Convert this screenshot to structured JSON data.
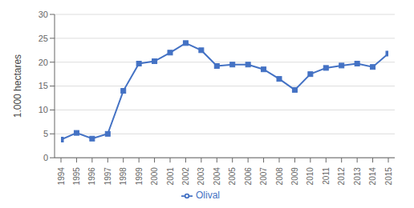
{
  "chart_data": {
    "type": "line",
    "x": [
      1994,
      1995,
      1996,
      1997,
      1998,
      1999,
      2000,
      2001,
      2002,
      2003,
      2004,
      2005,
      2006,
      2007,
      2008,
      2009,
      2010,
      2011,
      2012,
      2013,
      2014,
      2015
    ],
    "series": [
      {
        "name": "Olival",
        "color": "#4472C4",
        "marker": "square",
        "values": [
          3.8,
          5.2,
          4.0,
          5.0,
          14.0,
          19.7,
          20.2,
          22.0,
          24.0,
          22.5,
          19.2,
          19.5,
          19.5,
          18.5,
          16.5,
          14.2,
          17.5,
          18.8,
          19.3,
          19.7,
          19.0,
          21.8
        ]
      }
    ],
    "ylabel": "1.000 hectares",
    "xlim": [
      1994,
      2015
    ],
    "xticks": [
      1994,
      1995,
      1996,
      1997,
      1998,
      1999,
      2000,
      2001,
      2002,
      2003,
      2004,
      2005,
      2006,
      2007,
      2008,
      2009,
      2010,
      2011,
      2012,
      2013,
      2014,
      2015
    ],
    "ylim": [
      0,
      30
    ],
    "yticks": [
      0,
      5,
      10,
      15,
      20,
      25,
      30
    ],
    "grid": "y",
    "legend": "bottom"
  }
}
